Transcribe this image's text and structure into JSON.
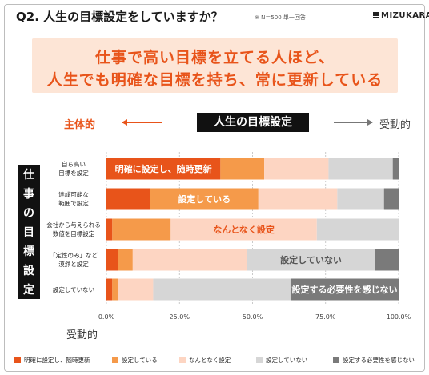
{
  "question_title": "Q2. 人生の目標設定をしていますか？",
  "sample_note": "※  N＝500  単一回答",
  "logo_text": "MIZUKARA",
  "banner": {
    "line1": "仕事で高い目標を立てる人ほど、",
    "line2": "人生でも明確な目標を持ち、常に更新している"
  },
  "axis_labels": {
    "top_left": "主体的",
    "top_right": "受動的",
    "bottom": "受動的",
    "header": "人生の目標設定",
    "vertical": [
      "仕",
      "事",
      "の",
      "目",
      "標",
      "設",
      "定"
    ]
  },
  "colors": {
    "s1": "#e8541a",
    "s2": "#f59a4a",
    "s3": "#fdd5c2",
    "s4": "#d6d6d6",
    "s5": "#7a7a7a"
  },
  "chart_data": {
    "type": "bar",
    "orientation": "horizontal",
    "stacked": true,
    "categories": [
      [
        "自ら高い",
        "目標を設定"
      ],
      [
        "達成可能な",
        "範囲で設定"
      ],
      [
        "会社から与えられる",
        "数値を目標設定"
      ],
      [
        "「定性のみ」など",
        "漠然と設定"
      ],
      [
        "設定していない"
      ]
    ],
    "series": [
      {
        "name": "明確に設定し、随時更新",
        "values": [
          39,
          15,
          2,
          4,
          2
        ]
      },
      {
        "name": "設定している",
        "values": [
          15,
          37,
          20,
          5,
          2
        ]
      },
      {
        "name": "なんとなく設定",
        "values": [
          22,
          27,
          50,
          39,
          12
        ]
      },
      {
        "name": "設定していない",
        "values": [
          22,
          16,
          28,
          44,
          47
        ]
      },
      {
        "name": "設定する必要性を感じない",
        "values": [
          2,
          5,
          0,
          8,
          37
        ]
      }
    ],
    "bar_labels": [
      {
        "row": 0,
        "series": 0,
        "text": "明確に設定し、随時更新"
      },
      {
        "row": 1,
        "series": 1,
        "text": "設定している"
      },
      {
        "row": 2,
        "series": 2,
        "text": "なんとなく設定"
      },
      {
        "row": 3,
        "series": 3,
        "text": "設定していない"
      },
      {
        "row": 4,
        "series": 4,
        "text": "設定する必要性を感じない"
      }
    ],
    "xticks": [
      "0.0%",
      "25.0%",
      "50.0%",
      "75.0%",
      "100.0%"
    ],
    "xlim": [
      0,
      100
    ],
    "grid": true,
    "legend_position": "bottom"
  }
}
